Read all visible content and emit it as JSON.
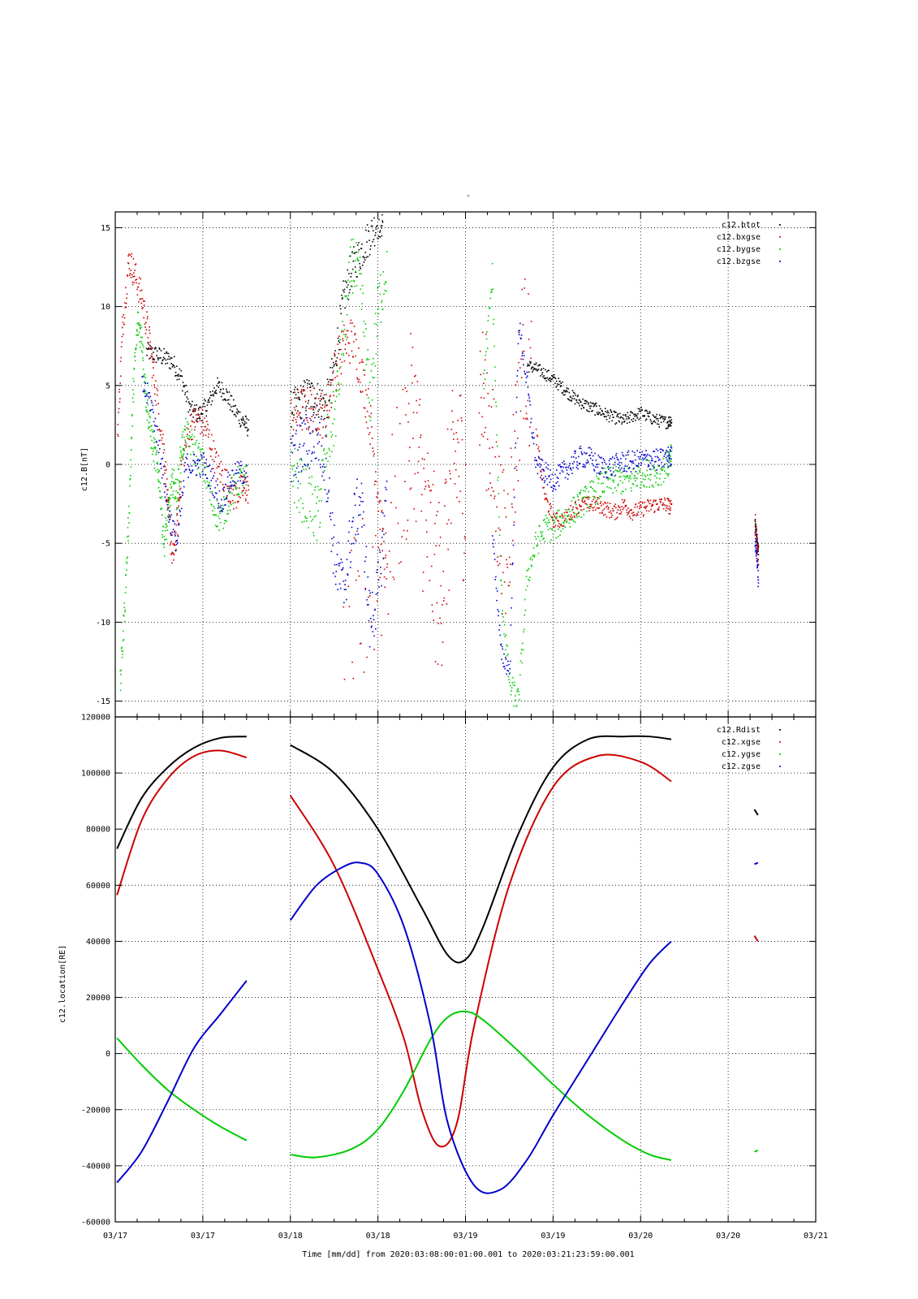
{
  "figure": {
    "title": "-",
    "xlabel": "Time [mm/dd]  from 2020:03:08:00:01:00.001  to  2020:03:21:23:59:00.001"
  },
  "chart_data": [
    {
      "type": "scatter",
      "ylabel": "c12.B[nT]",
      "xlim": [
        0,
        8
      ],
      "ylim": [
        -16,
        16
      ],
      "yticks": [
        -15,
        -10,
        -5,
        0,
        5,
        10,
        15
      ],
      "xticks": [
        "03/17",
        "03/17",
        "03/18",
        "03/18",
        "03/19",
        "03/19",
        "03/20",
        "03/20",
        "03/21"
      ],
      "grid": true,
      "legend_position": "top-right",
      "series": [
        {
          "name": "c12.btot",
          "color": "#000000",
          "marker": "dot",
          "segments": [
            {
              "x": [
                0.35,
                0.45,
                0.55,
                0.65,
                0.75,
                0.85,
                0.95,
                1.05,
                1.15,
                1.25,
                1.35,
                1.45,
                1.52
              ],
              "y": [
                7.2,
                7.0,
                6.8,
                6.5,
                5.5,
                3.5,
                3.2,
                3.8,
                5.0,
                4.6,
                3.5,
                2.8,
                2.3
              ],
              "spread": 0.6
            },
            {
              "x": [
                2.0,
                2.1,
                2.2,
                2.3,
                2.4,
                2.5,
                2.6,
                2.7,
                2.8,
                2.9,
                3.0,
                3.05
              ],
              "y": [
                3.5,
                4.0,
                4.5,
                4.2,
                3.8,
                6.5,
                10.5,
                12.5,
                13.5,
                14.5,
                15.5,
                15.5
              ],
              "spread": 1.2
            },
            {
              "x": [
                4.7,
                4.8,
                4.9,
                5.0,
                5.1,
                5.2,
                5.3,
                5.4,
                5.5,
                5.6,
                5.7,
                5.8,
                5.9,
                6.0,
                6.1,
                6.2,
                6.3,
                6.35
              ],
              "y": [
                6.3,
                6.1,
                5.8,
                5.4,
                4.9,
                4.4,
                4.0,
                3.7,
                3.5,
                3.2,
                3.0,
                2.8,
                3.1,
                3.3,
                3.0,
                2.8,
                2.7,
                2.9
              ],
              "spread": 0.4
            },
            {
              "x": [
                7.3,
                7.32,
                7.34
              ],
              "y": [
                -3.5,
                -4.5,
                -5.5
              ],
              "spread": 0.3
            }
          ]
        },
        {
          "name": "c12.bxgse",
          "color": "#cc0000",
          "marker": "dot",
          "segments": [
            {
              "x": [
                0.02,
                0.08,
                0.15,
                0.22,
                0.3,
                0.38,
                0.45,
                0.55,
                0.6,
                0.65,
                0.7,
                0.75,
                0.85,
                0.95,
                1.05,
                1.15,
                1.25,
                1.35,
                1.45,
                1.52
              ],
              "y": [
                2.0,
                9.0,
                13.0,
                12.0,
                10.5,
                8.0,
                5.0,
                1.0,
                -3.0,
                -6.0,
                -4.0,
                0.0,
                2.5,
                3.0,
                2.0,
                0.0,
                -1.0,
                -2.0,
                -1.5,
                -1.5
              ],
              "spread": 1.0
            },
            {
              "x": [
                2.0,
                2.1,
                2.2,
                2.3,
                2.4,
                2.5,
                2.6,
                2.7,
                2.8,
                2.9,
                3.0,
                3.1
              ],
              "y": [
                3.0,
                3.5,
                3.5,
                3.5,
                3.0,
                6.0,
                7.5,
                8.0,
                6.0,
                3.0,
                -2.0,
                -8.0
              ],
              "spread": 1.5
            },
            {
              "x": [
                2.6,
                2.8,
                3.1,
                3.3,
                3.4,
                3.5,
                3.6,
                3.7,
                3.8,
                3.9,
                4.0
              ],
              "y": [
                -13.0,
                -9.0,
                -5.0,
                0.0,
                3.5,
                -2.0,
                -5.5,
                -8.0,
                -3.0,
                1.0,
                -2.5
              ],
              "spread": 6.0
            },
            {
              "x": [
                4.15,
                4.25,
                4.35,
                4.45,
                4.55,
                4.65,
                4.75
              ],
              "y": [
                5.0,
                3.0,
                -2.0,
                -6.0,
                0.0,
                8.0,
                5.0
              ],
              "spread": 5.0
            },
            {
              "x": [
                4.8,
                4.9,
                5.0,
                5.1,
                5.2,
                5.3,
                5.4,
                5.5,
                5.6,
                5.7,
                5.8,
                5.9,
                6.0,
                6.1,
                6.2,
                6.3,
                6.35
              ],
              "y": [
                2.0,
                -2.0,
                -3.5,
                -3.5,
                -3.0,
                -2.5,
                -2.5,
                -2.5,
                -2.8,
                -3.0,
                -2.5,
                -3.0,
                -2.8,
                -2.6,
                -2.5,
                -2.5,
                -2.8
              ],
              "spread": 0.5
            },
            {
              "x": [
                7.3,
                7.32,
                7.34
              ],
              "y": [
                -3.5,
                -5.0,
                -6.0
              ],
              "spread": 0.8
            }
          ]
        },
        {
          "name": "c12.bygse",
          "color": "#00cc00",
          "marker": "dot",
          "segments": [
            {
              "x": [
                0.05,
                0.1,
                0.15,
                0.2,
                0.25,
                0.3,
                0.35,
                0.4,
                0.45,
                0.5,
                0.55,
                0.6,
                0.65,
                0.7,
                0.75,
                0.8,
                0.9,
                1.0,
                1.1,
                1.2,
                1.3,
                1.4,
                1.5
              ],
              "y": [
                -14.0,
                -9.0,
                -3.0,
                5.0,
                9.0,
                8.0,
                4.0,
                2.0,
                0.5,
                -1.0,
                -5.0,
                -3.0,
                -1.0,
                -2.0,
                1.0,
                2.0,
                1.0,
                0.0,
                -2.5,
                -3.5,
                -2.0,
                -1.0,
                -1.0
              ],
              "spread": 1.0
            },
            {
              "x": [
                2.0,
                2.1,
                2.2,
                2.3,
                2.4,
                2.5,
                2.6,
                2.7,
                2.8,
                2.9,
                3.0,
                3.1
              ],
              "y": [
                0.0,
                -1.5,
                -2.0,
                -3.5,
                1.0,
                3.0,
                8.0,
                13.0,
                11.0,
                4.0,
                10.0,
                13.0
              ],
              "spread": 2.0
            },
            {
              "x": [
                4.2,
                4.3,
                4.4,
                4.5,
                4.6,
                4.7,
                4.8,
                4.9,
                5.0,
                5.1,
                5.2,
                5.3,
                5.4,
                5.5,
                5.6,
                5.7,
                5.8,
                5.9,
                6.0,
                6.1,
                6.2,
                6.3,
                6.35
              ],
              "y": [
                5.0,
                12.0,
                -8.0,
                -14.0,
                -15.0,
                -7.0,
                -5.0,
                -4.0,
                -4.0,
                -3.5,
                -3.0,
                -2.5,
                -2.0,
                -1.5,
                -1.0,
                -1.0,
                -1.0,
                -1.0,
                -0.5,
                -0.5,
                -0.5,
                0.0,
                0.5
              ],
              "spread": 0.9
            }
          ]
        },
        {
          "name": "c12.bzgse",
          "color": "#0000cc",
          "marker": "dot",
          "segments": [
            {
              "x": [
                0.3,
                0.4,
                0.5,
                0.6,
                0.7,
                0.8,
                0.9,
                1.0,
                1.1,
                1.2,
                1.3,
                1.4,
                1.5
              ],
              "y": [
                5.0,
                4.0,
                1.0,
                -3.0,
                -5.0,
                0.0,
                0.0,
                0.0,
                -1.0,
                -2.5,
                -1.0,
                -0.5,
                -0.5
              ],
              "spread": 0.8
            },
            {
              "x": [
                2.0,
                2.1,
                2.2,
                2.3,
                2.4,
                2.5,
                2.6,
                2.7,
                2.8,
                2.9,
                3.0,
                3.1
              ],
              "y": [
                0.0,
                1.0,
                1.5,
                2.0,
                0.0,
                -6.0,
                -8.0,
                -4.0,
                -2.0,
                -10.0,
                -8.0,
                -1.0
              ],
              "spread": 2.0
            },
            {
              "x": [
                4.3,
                4.4,
                4.5,
                4.6,
                4.7,
                4.8,
                4.9,
                5.0,
                5.1,
                5.2,
                5.3,
                5.4,
                5.5,
                5.6,
                5.7,
                5.8,
                5.9,
                6.0,
                6.1,
                6.2,
                6.3,
                6.35
              ],
              "y": [
                -4.0,
                -12.0,
                -13.0,
                9.0,
                5.0,
                0.0,
                -0.5,
                -1.0,
                -0.5,
                0.0,
                0.5,
                0.5,
                0.0,
                -0.2,
                0.0,
                0.2,
                0.2,
                0.3,
                0.4,
                0.3,
                0.5,
                0.5
              ],
              "spread": 0.7
            },
            {
              "x": [
                7.3,
                7.32,
                7.34
              ],
              "y": [
                -4.5,
                -5.5,
                -7.5
              ],
              "spread": 0.7
            }
          ]
        }
      ]
    },
    {
      "type": "line",
      "ylabel": "c12.location[RE]",
      "xlim": [
        0,
        8
      ],
      "ylim": [
        -60000,
        120000
      ],
      "yticks": [
        -60000,
        -40000,
        -20000,
        0,
        20000,
        40000,
        60000,
        80000,
        100000,
        120000
      ],
      "xticks": [
        "03/17",
        "03/17",
        "03/18",
        "03/18",
        "03/19",
        "03/19",
        "03/20",
        "03/20",
        "03/21"
      ],
      "grid": true,
      "legend_position": "top-right",
      "series": [
        {
          "name": "c12.Rdist",
          "color": "#000000",
          "segments": [
            {
              "x": [
                0.02,
                0.3,
                0.6,
                0.9,
                1.2,
                1.5
              ],
              "y": [
                73000,
                91000,
                102000,
                109000,
                112500,
                113000
              ]
            },
            {
              "x": [
                2.0,
                2.5,
                3.0,
                3.5,
                3.8,
                4.0,
                4.2,
                4.6,
                5.0,
                5.4,
                5.8,
                6.1,
                6.35
              ],
              "y": [
                110000,
                100000,
                80000,
                52000,
                35000,
                33500,
                45000,
                78000,
                102000,
                112000,
                113000,
                113000,
                112000
              ]
            },
            {
              "x": [
                7.3,
                7.34
              ],
              "y": [
                87000,
                85000
              ]
            }
          ]
        },
        {
          "name": "c12.xgse",
          "color": "#cc0000",
          "segments": [
            {
              "x": [
                0.02,
                0.3,
                0.6,
                0.9,
                1.2,
                1.5
              ],
              "y": [
                56500,
                83000,
                98000,
                106000,
                108000,
                105500
              ]
            },
            {
              "x": [
                2.0,
                2.5,
                3.0,
                3.3,
                3.5,
                3.7,
                3.9,
                4.1,
                4.5,
                5.0,
                5.5,
                6.0,
                6.35
              ],
              "y": [
                92000,
                67000,
                30000,
                5000,
                -20000,
                -33000,
                -25000,
                10000,
                60000,
                95000,
                106000,
                104000,
                97000
              ]
            },
            {
              "x": [
                7.3,
                7.34
              ],
              "y": [
                42000,
                40000
              ]
            }
          ]
        },
        {
          "name": "c12.ygse",
          "color": "#00cc00",
          "segments": [
            {
              "x": [
                0.02,
                0.3,
                0.6,
                0.9,
                1.2,
                1.5
              ],
              "y": [
                5500,
                -4000,
                -13000,
                -20000,
                -26000,
                -31000
              ]
            },
            {
              "x": [
                2.0,
                2.3,
                2.7,
                3.0,
                3.3,
                3.6,
                3.8,
                4.0,
                4.2,
                4.6,
                5.0,
                5.4,
                5.8,
                6.1,
                6.35
              ],
              "y": [
                -36000,
                -37000,
                -34000,
                -27000,
                -13000,
                5000,
                13000,
                15000,
                12000,
                1000,
                -11000,
                -22000,
                -31000,
                -36000,
                -38000
              ]
            },
            {
              "x": [
                7.3,
                7.34
              ],
              "y": [
                -35000,
                -34500
              ]
            }
          ]
        },
        {
          "name": "c12.zgse",
          "color": "#0000cc",
          "segments": [
            {
              "x": [
                0.02,
                0.3,
                0.6,
                0.9,
                1.2,
                1.5
              ],
              "y": [
                -46000,
                -35000,
                -17000,
                2000,
                14000,
                26000
              ]
            },
            {
              "x": [
                2.0,
                2.3,
                2.6,
                2.8,
                3.0,
                3.3,
                3.6,
                3.8,
                4.1,
                4.4,
                4.7,
                5.0,
                5.4,
                5.8,
                6.1,
                6.35
              ],
              "y": [
                47500,
                60000,
                66500,
                68000,
                64000,
                45000,
                10000,
                -25000,
                -47000,
                -48500,
                -38000,
                -22000,
                -2000,
                18000,
                32000,
                40000
              ]
            },
            {
              "x": [
                7.3,
                7.34
              ],
              "y": [
                67500,
                68000
              ]
            }
          ]
        }
      ]
    }
  ]
}
